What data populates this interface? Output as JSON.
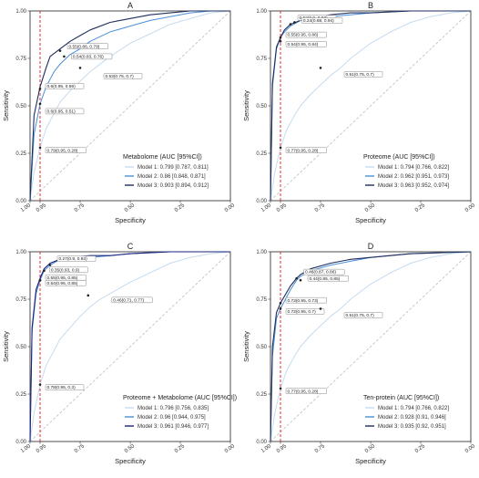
{
  "colors": {
    "model1": "#c6dbef",
    "model2": "#4a90d9",
    "model3": "#1f2d5c",
    "model3_panelC": "#1a237e",
    "cutoff": "#e41a1c",
    "diagonal": "#bdbdbd",
    "annotation_dot": "#222222"
  },
  "axes": {
    "xlabel": "Specificity",
    "ylabel": "Sensitivity",
    "x_ticks": [
      "1.00",
      "0.95",
      "0.75",
      "0.50",
      "0.25",
      "0.00"
    ],
    "y_ticks": [
      "0.00",
      "0.25",
      "0.50",
      "0.75",
      "1.00"
    ]
  },
  "chart_data": [
    {
      "type": "line",
      "title": "A",
      "xlabel": "Specificity",
      "ylabel": "Sensitivity",
      "xlim": [
        1.0,
        0.0
      ],
      "ylim": [
        0.0,
        1.0
      ],
      "x_reversed": true,
      "reference_line_x": 0.95,
      "legend": {
        "title": "Metabolome (AUC [95%CI])",
        "placement": "bottom-right",
        "entries": [
          "Model 1: 0.799 [0.787, 0.811]",
          "Model 2: 0.86 [0.848, 0.871]",
          "Model 3: 0.903 [0.894, 0.912]"
        ]
      },
      "series": [
        {
          "name": "Model 1: 0.799 [0.787, 0.811]",
          "x": [
            1.0,
            0.98,
            0.95,
            0.92,
            0.88,
            0.85,
            0.8,
            0.75,
            0.7,
            0.65,
            0.6,
            0.5,
            0.4,
            0.3,
            0.2,
            0.1,
            0.0
          ],
          "y": [
            0.0,
            0.15,
            0.28,
            0.38,
            0.46,
            0.52,
            0.58,
            0.63,
            0.68,
            0.72,
            0.76,
            0.83,
            0.88,
            0.93,
            0.96,
            0.99,
            1.0
          ]
        },
        {
          "name": "Model 2: 0.86 [0.848, 0.871]",
          "x": [
            1.0,
            0.98,
            0.95,
            0.92,
            0.88,
            0.85,
            0.8,
            0.75,
            0.7,
            0.6,
            0.5,
            0.4,
            0.3,
            0.2,
            0.1,
            0.0
          ],
          "y": [
            0.0,
            0.35,
            0.51,
            0.6,
            0.68,
            0.72,
            0.77,
            0.8,
            0.84,
            0.89,
            0.92,
            0.95,
            0.97,
            0.99,
            1.0,
            1.0
          ]
        },
        {
          "name": "Model 3: 0.903 [0.894, 0.912]",
          "x": [
            1.0,
            0.98,
            0.95,
            0.92,
            0.9,
            0.85,
            0.8,
            0.75,
            0.7,
            0.6,
            0.5,
            0.4,
            0.3,
            0.2,
            0.1,
            0.0
          ],
          "y": [
            0.0,
            0.45,
            0.6,
            0.7,
            0.76,
            0.8,
            0.84,
            0.87,
            0.9,
            0.94,
            0.96,
            0.98,
            0.99,
            1.0,
            1.0,
            1.0
          ]
        }
      ],
      "annotations": [
        {
          "text": "0.55(0.86, 0.79)",
          "x": 0.85,
          "y": 0.79
        },
        {
          "text": "0.54(0.83, 0.76)",
          "x": 0.83,
          "y": 0.76
        },
        {
          "text": "0.53(0.75, 0.7)",
          "x": 0.75,
          "y": 0.7
        },
        {
          "text": "0.6(0.95, 0.59)",
          "x": 0.95,
          "y": 0.59
        },
        {
          "text": "0.6(0.95, 0.51)",
          "x": 0.95,
          "y": 0.51
        },
        {
          "text": "0.79(0.95, 0.28)",
          "x": 0.95,
          "y": 0.28
        }
      ]
    },
    {
      "type": "line",
      "title": "B",
      "xlabel": "Specificity",
      "ylabel": "Sensitivity",
      "xlim": [
        1.0,
        0.0
      ],
      "ylim": [
        0.0,
        1.0
      ],
      "x_reversed": true,
      "reference_line_x": 0.95,
      "legend": {
        "title": "Proteome (AUC [95%CI])",
        "placement": "bottom-right",
        "entries": [
          "Model 1: 0.794 [0.766, 0.822]",
          "Model 2: 0.962 [0.951, 0.973]",
          "Model 3: 0.963 [0.952, 0.974]"
        ]
      },
      "series": [
        {
          "name": "Model 1: 0.794 [0.766, 0.822]",
          "x": [
            1.0,
            0.98,
            0.95,
            0.92,
            0.88,
            0.85,
            0.8,
            0.75,
            0.7,
            0.65,
            0.6,
            0.5,
            0.4,
            0.3,
            0.2,
            0.1,
            0.0
          ],
          "y": [
            0.0,
            0.14,
            0.28,
            0.37,
            0.45,
            0.5,
            0.56,
            0.61,
            0.66,
            0.7,
            0.75,
            0.83,
            0.89,
            0.94,
            0.97,
            0.99,
            1.0
          ]
        },
        {
          "name": "Model 2: 0.962 [0.951, 0.973]",
          "x": [
            1.0,
            0.99,
            0.97,
            0.95,
            0.93,
            0.9,
            0.85,
            0.8,
            0.7,
            0.6,
            0.5,
            0.3,
            0.0
          ],
          "y": [
            0.0,
            0.6,
            0.8,
            0.86,
            0.89,
            0.92,
            0.95,
            0.96,
            0.97,
            0.98,
            0.99,
            1.0,
            1.0
          ]
        },
        {
          "name": "Model 3: 0.963 [0.952, 0.974]",
          "x": [
            1.0,
            0.99,
            0.97,
            0.95,
            0.93,
            0.9,
            0.85,
            0.8,
            0.7,
            0.6,
            0.5,
            0.3,
            0.0
          ],
          "y": [
            0.0,
            0.62,
            0.81,
            0.86,
            0.9,
            0.93,
            0.95,
            0.96,
            0.98,
            0.99,
            0.99,
            1.0,
            1.0
          ]
        }
      ],
      "annotations": [
        {
          "text": "0.52(0.9, 0.93)",
          "x": 0.9,
          "y": 0.93
        },
        {
          "text": "0.24(0.88, 0.94)",
          "x": 0.88,
          "y": 0.94
        },
        {
          "text": "0.55(0.95, 0.86)",
          "x": 0.95,
          "y": 0.86
        },
        {
          "text": "0.54(0.95, 0.84)",
          "x": 0.95,
          "y": 0.84
        },
        {
          "text": "0.51(0.75, 0.7)",
          "x": 0.75,
          "y": 0.7
        },
        {
          "text": "0.77(0.95, 0.28)",
          "x": 0.95,
          "y": 0.28
        }
      ]
    },
    {
      "type": "line",
      "title": "C",
      "xlabel": "Specificity",
      "ylabel": "Sensitivity",
      "xlim": [
        1.0,
        0.0
      ],
      "ylim": [
        0.0,
        1.0
      ],
      "x_reversed": true,
      "reference_line_x": 0.95,
      "legend": {
        "title": "Proteome + Metabolome (AUC [95%CI])",
        "placement": "bottom-right",
        "entries": [
          "Model 1: 0.796 [0.756, 0.835]",
          "Model 2: 0.96 [0.944, 0.975]",
          "Model 3: 0.961 [0.946, 0.977]"
        ]
      },
      "series": [
        {
          "name": "Model 1: 0.796 [0.756, 0.835]",
          "x": [
            1.0,
            0.98,
            0.95,
            0.92,
            0.88,
            0.85,
            0.8,
            0.75,
            0.7,
            0.65,
            0.6,
            0.5,
            0.4,
            0.3,
            0.2,
            0.1,
            0.0
          ],
          "y": [
            0.0,
            0.15,
            0.3,
            0.4,
            0.48,
            0.54,
            0.6,
            0.66,
            0.71,
            0.75,
            0.78,
            0.84,
            0.89,
            0.94,
            0.97,
            0.99,
            1.0
          ]
        },
        {
          "name": "Model 2: 0.96 [0.944, 0.975]",
          "x": [
            1.0,
            0.99,
            0.97,
            0.95,
            0.93,
            0.9,
            0.85,
            0.8,
            0.7,
            0.6,
            0.5,
            0.3,
            0.0
          ],
          "y": [
            0.0,
            0.58,
            0.78,
            0.85,
            0.9,
            0.93,
            0.96,
            0.97,
            0.97,
            0.98,
            0.99,
            1.0,
            1.0
          ]
        },
        {
          "name": "Model 3: 0.961 [0.946, 0.977]",
          "x": [
            1.0,
            0.99,
            0.97,
            0.95,
            0.93,
            0.9,
            0.85,
            0.8,
            0.7,
            0.6,
            0.5,
            0.3,
            0.0
          ],
          "y": [
            0.0,
            0.6,
            0.8,
            0.86,
            0.91,
            0.94,
            0.96,
            0.97,
            0.98,
            0.98,
            0.99,
            1.0,
            1.0
          ]
        }
      ],
      "annotations": [
        {
          "text": "0.27(0.9, 0.93)",
          "x": 0.9,
          "y": 0.93
        },
        {
          "text": "0.35(0.93, 0.9)",
          "x": 0.93,
          "y": 0.9
        },
        {
          "text": "0.55(0.95, 0.85)",
          "x": 0.95,
          "y": 0.85
        },
        {
          "text": "0.54(0.95, 0.85)",
          "x": 0.95,
          "y": 0.85
        },
        {
          "text": "0.46(0.71, 0.77)",
          "x": 0.71,
          "y": 0.77
        },
        {
          "text": "0.78(0.95, 0.3)",
          "x": 0.95,
          "y": 0.3
        }
      ]
    },
    {
      "type": "line",
      "title": "D",
      "xlabel": "Specificity",
      "ylabel": "Sensitivity",
      "xlim": [
        1.0,
        0.0
      ],
      "ylim": [
        0.0,
        1.0
      ],
      "x_reversed": true,
      "reference_line_x": 0.95,
      "legend": {
        "title": "Ten-protein (AUC [95%CI])",
        "placement": "bottom-right",
        "entries": [
          "Model 1: 0.794 [0.766, 0.822]",
          "Model 2: 0.928 [0.91, 0.946]",
          "Model 3: 0.935 [0.92, 0.951]"
        ]
      },
      "series": [
        {
          "name": "Model 1: 0.794 [0.766, 0.822]",
          "x": [
            1.0,
            0.98,
            0.95,
            0.92,
            0.88,
            0.85,
            0.8,
            0.75,
            0.7,
            0.65,
            0.6,
            0.5,
            0.4,
            0.3,
            0.2,
            0.1,
            0.0
          ],
          "y": [
            0.0,
            0.14,
            0.28,
            0.37,
            0.45,
            0.5,
            0.56,
            0.61,
            0.66,
            0.7,
            0.75,
            0.83,
            0.89,
            0.94,
            0.97,
            0.99,
            1.0
          ]
        },
        {
          "name": "Model 2: 0.928 [0.91, 0.946]",
          "x": [
            1.0,
            0.99,
            0.97,
            0.95,
            0.9,
            0.87,
            0.85,
            0.8,
            0.7,
            0.6,
            0.5,
            0.3,
            0.0
          ],
          "y": [
            0.0,
            0.45,
            0.65,
            0.7,
            0.8,
            0.85,
            0.87,
            0.9,
            0.93,
            0.95,
            0.97,
            0.99,
            1.0
          ]
        },
        {
          "name": "Model 3: 0.935 [0.92, 0.951]",
          "x": [
            1.0,
            0.99,
            0.97,
            0.95,
            0.9,
            0.87,
            0.85,
            0.8,
            0.7,
            0.6,
            0.5,
            0.3,
            0.0
          ],
          "y": [
            0.0,
            0.5,
            0.68,
            0.73,
            0.82,
            0.86,
            0.88,
            0.91,
            0.94,
            0.96,
            0.97,
            0.99,
            1.0
          ]
        }
      ],
      "annotations": [
        {
          "text": "0.46(0.87, 0.86)",
          "x": 0.87,
          "y": 0.86
        },
        {
          "text": "0.44(0.85, 0.85)",
          "x": 0.85,
          "y": 0.85
        },
        {
          "text": "0.73(0.95, 0.73)",
          "x": 0.95,
          "y": 0.73
        },
        {
          "text": "0.73(0.95, 0.7)",
          "x": 0.95,
          "y": 0.7
        },
        {
          "text": "0.51(0.75, 0.7)",
          "x": 0.75,
          "y": 0.7
        },
        {
          "text": "0.77(0.95, 0.28)",
          "x": 0.95,
          "y": 0.28
        }
      ]
    }
  ]
}
